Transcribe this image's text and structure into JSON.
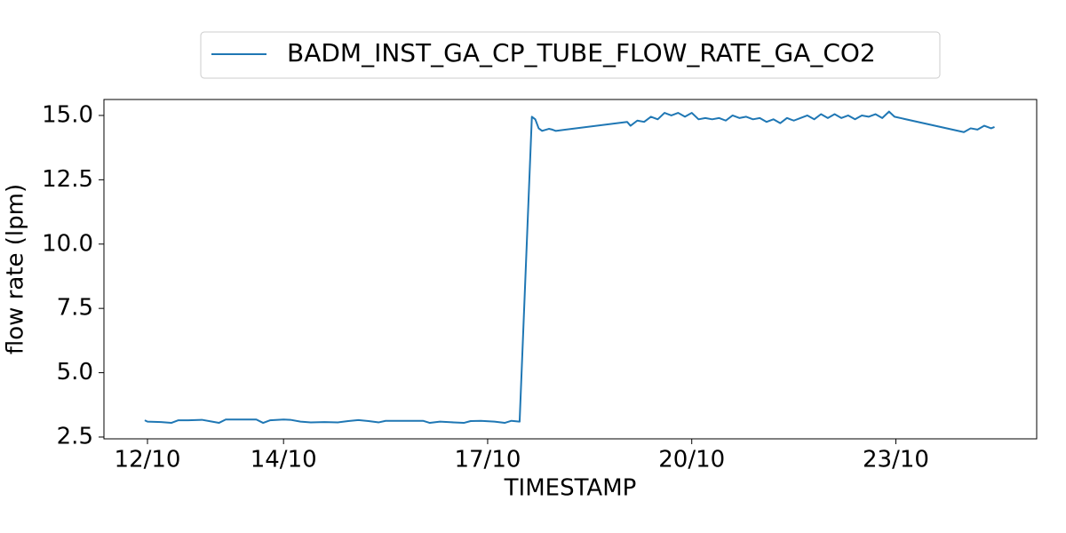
{
  "chart_data": {
    "type": "line",
    "x_label": "TIMESTAMP",
    "y_label": "flow rate (lpm)",
    "xlim": [
      11.36,
      25.07
    ],
    "ylim": [
      2.43,
      15.62
    ],
    "xticks": [
      {
        "value": 12,
        "label": "12/10"
      },
      {
        "value": 14,
        "label": "14/10"
      },
      {
        "value": 17,
        "label": "17/10"
      },
      {
        "value": 20,
        "label": "20/10"
      },
      {
        "value": 23,
        "label": "23/10"
      }
    ],
    "yticks": [
      2.5,
      {
        "value": 5,
        "label": "5.0"
      },
      7.5,
      {
        "value": 10,
        "label": "10.0"
      },
      12.5,
      {
        "value": 15,
        "label": "15.0"
      }
    ],
    "grid": false,
    "legend": "top",
    "x": [
      11.96,
      12.0,
      12.2,
      12.35,
      12.45,
      12.6,
      12.8,
      12.95,
      13.05,
      13.15,
      13.4,
      13.6,
      13.7,
      13.8,
      14.0,
      14.1,
      14.25,
      14.4,
      14.6,
      14.8,
      14.95,
      15.1,
      15.25,
      15.4,
      15.5,
      15.7,
      15.9,
      16.05,
      16.15,
      16.3,
      16.5,
      16.65,
      16.75,
      16.9,
      17.1,
      17.25,
      17.35,
      17.47,
      17.65,
      17.7,
      17.75,
      17.8,
      17.9,
      17.95,
      18.0,
      19.05,
      19.1,
      19.2,
      19.3,
      19.4,
      19.5,
      19.6,
      19.7,
      19.8,
      19.9,
      20.0,
      20.1,
      20.2,
      20.3,
      20.4,
      20.5,
      20.6,
      20.7,
      20.8,
      20.9,
      21.0,
      21.1,
      21.2,
      21.3,
      21.4,
      21.5,
      21.6,
      21.7,
      21.8,
      21.9,
      22.0,
      22.1,
      22.2,
      22.3,
      22.4,
      22.5,
      22.6,
      22.7,
      22.8,
      22.9,
      22.98,
      24.0,
      24.1,
      24.2,
      24.3,
      24.4,
      24.45
    ],
    "series": [
      {
        "name": "BADM_INST_GA_CP_TUBE_FLOW_RATE_GA_CO2",
        "color": "#1f77b4",
        "values": [
          3.15,
          3.1,
          3.08,
          3.05,
          3.15,
          3.15,
          3.17,
          3.1,
          3.05,
          3.18,
          3.18,
          3.18,
          3.05,
          3.15,
          3.18,
          3.17,
          3.1,
          3.07,
          3.08,
          3.07,
          3.12,
          3.16,
          3.12,
          3.07,
          3.13,
          3.13,
          3.13,
          3.13,
          3.05,
          3.1,
          3.07,
          3.05,
          3.12,
          3.13,
          3.1,
          3.05,
          3.13,
          3.1,
          14.95,
          14.85,
          14.5,
          14.4,
          14.48,
          14.45,
          14.4,
          14.75,
          14.6,
          14.8,
          14.75,
          14.95,
          14.85,
          15.1,
          15.0,
          15.1,
          14.95,
          15.1,
          14.85,
          14.9,
          14.85,
          14.9,
          14.8,
          15.0,
          14.9,
          14.95,
          14.85,
          14.9,
          14.75,
          14.85,
          14.7,
          14.9,
          14.8,
          14.9,
          15.0,
          14.85,
          15.05,
          14.9,
          15.05,
          14.9,
          15.0,
          14.85,
          15.0,
          14.95,
          15.05,
          14.9,
          15.15,
          14.95,
          14.35,
          14.5,
          14.45,
          14.6,
          14.5,
          14.55
        ]
      }
    ]
  }
}
